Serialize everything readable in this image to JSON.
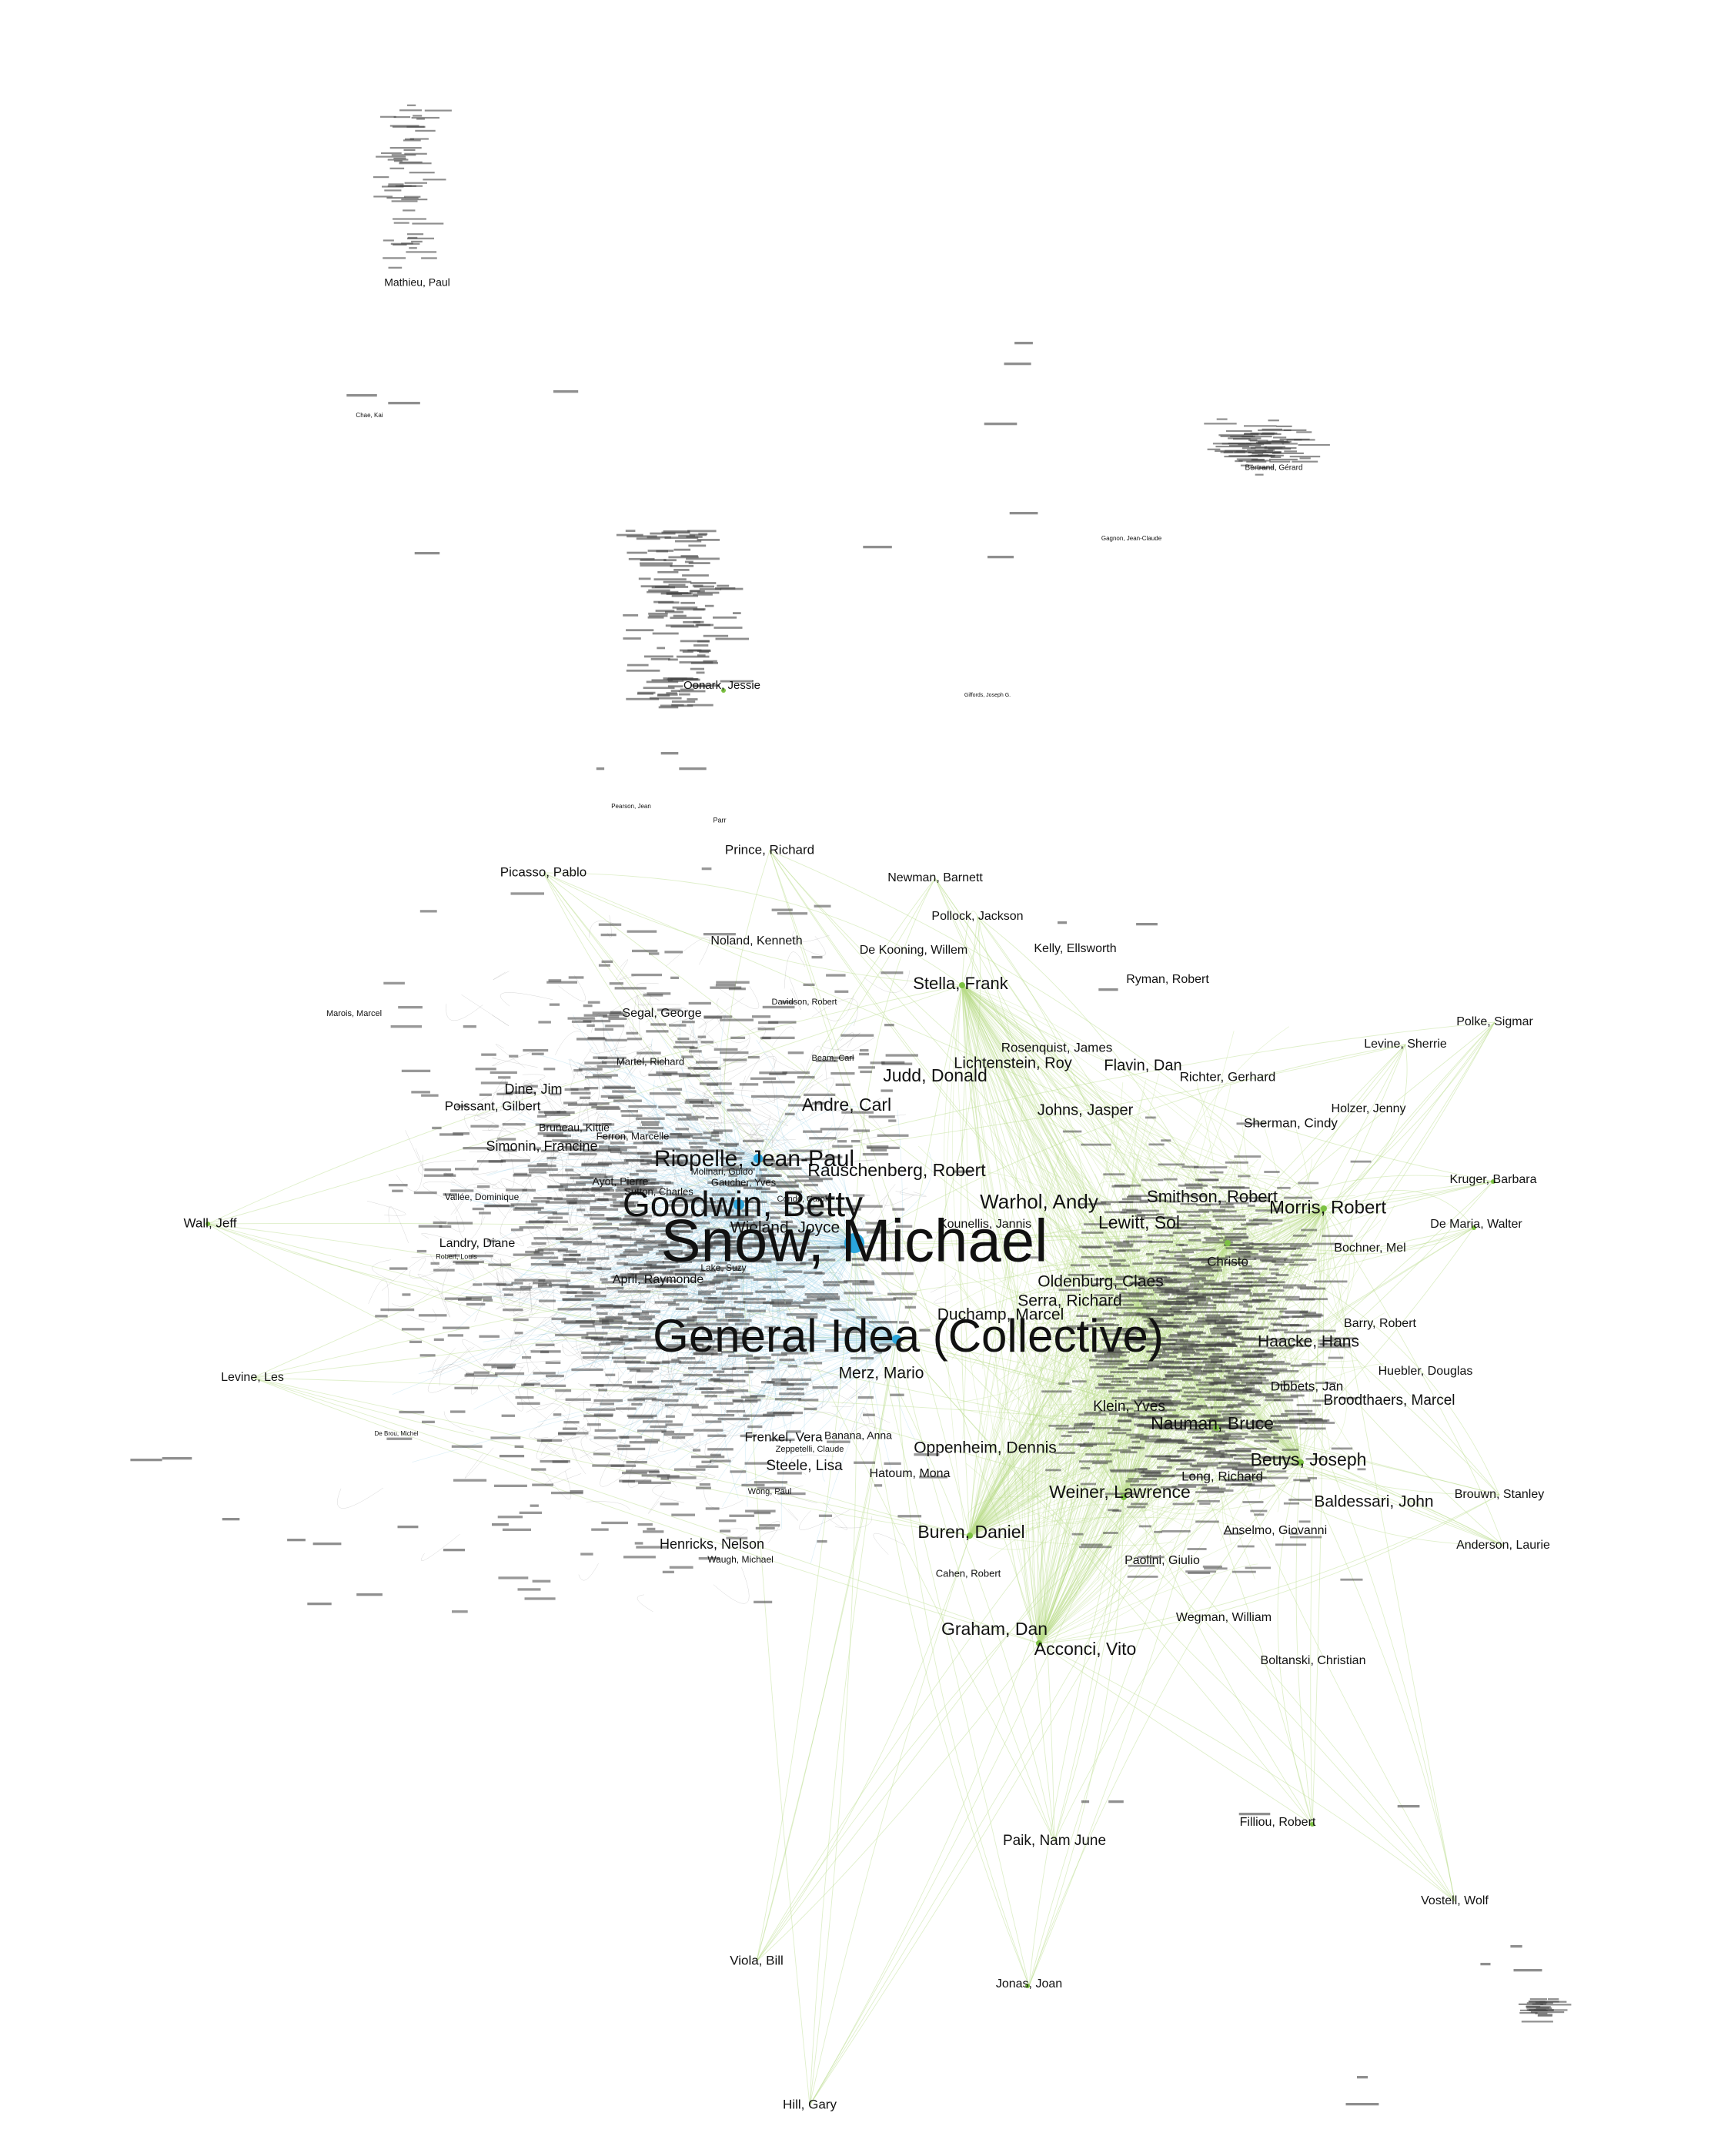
{
  "colors": {
    "background": "#ffffff",
    "canadian_edge": "#9bd1e8",
    "international_edge": "#b9dc8a",
    "canadian_node": "#2aa6dd",
    "international_node": "#7cc142",
    "neutral_node": "#999999"
  },
  "labels": {
    "snow": "Snow, Michael",
    "general_idea": "General Idea (Collective)",
    "goodwin": "Goodwin, Betty",
    "riopelle": "Riopelle, Jean-Paul",
    "rauschenberg": "Rauschenberg, Robert",
    "warhol": "Warhol, Andy",
    "lewitt": "Lewitt, Sol",
    "smithson": "Smithson, Robert",
    "morris": "Morris, Robert",
    "beuys": "Beuys, Joseph",
    "nauman": "Nauman, Bruce",
    "weiner": "Weiner, Lawrence",
    "buren": "Buren, Daniel",
    "graham": "Graham, Dan",
    "acconci": "Acconci, Vito",
    "judd": "Judd, Donald",
    "andre": "Andre, Carl",
    "stella": "Stella, Frank",
    "oldenburg": "Oldenburg, Claes",
    "serra": "Serra, Richard",
    "duchamp": "Duchamp, Marcel",
    "merz": "Merz, Mario",
    "oppenheim": "Oppenheim, Dennis",
    "haacke": "Haacke, Hans",
    "baldessari": "Baldessari, John",
    "dine": "Dine, Jim",
    "wall": "Wall, Jeff",
    "mathieu": "Mathieu, Paul",
    "oonark": "Oonark, Jessie",
    "picasso": "Picasso, Pablo",
    "prince": "Prince, Richard",
    "newman": "Newman, Barnett",
    "pollock": "Pollock, Jackson",
    "dekooning": "De Kooning, Willem",
    "kelly": "Kelly, Ellsworth",
    "ryman": "Ryman, Robert",
    "noland": "Noland, Kenneth",
    "segal": "Segal, George",
    "polke": "Polke, Sigmar",
    "levine_sherrie": "Levine, Sherrie",
    "rosenquist": "Rosenquist, James",
    "lichtenstein": "Lichtenstein, Roy",
    "flavin": "Flavin, Dan",
    "richter": "Richter, Gerhard",
    "holzer": "Holzer, Jenny",
    "johns": "Johns, Jasper",
    "sherman": "Sherman, Cindy",
    "kruger": "Kruger, Barbara",
    "demaria": "De Maria, Walter",
    "bochner": "Bochner, Mel",
    "christo": "Christo",
    "barry": "Barry, Robert",
    "huebler": "Huebler, Douglas",
    "dibbets": "Dibbets, Jan",
    "broodthaers": "Broodthaers, Marcel",
    "klein": "Klein, Yves",
    "long": "Long, Richard",
    "brouwn": "Brouwn, Stanley",
    "anselmo": "Anselmo, Giovanni",
    "anderson": "Anderson, Laurie",
    "paolini": "Paolini, Giulio",
    "wegman": "Wegman, William",
    "boltanski": "Boltanski, Christian",
    "kounellis": "Kounellis, Jannis",
    "wieland": "Wieland, Joyce",
    "levine_les": "Levine, Les",
    "landry": "Landry, Diane",
    "april": "April, Raymonde",
    "simonin": "Simonin, Francine",
    "poissant": "Poissant, Gilbert",
    "martel": "Martel, Richard",
    "bruneau": "Bruneau, Kittie",
    "ferron": "Ferron, Marcelle",
    "ayot": "Ayot, Pierre",
    "gaucher": "Gaucher, Yves",
    "frenkel": "Frenkel, Vera",
    "steele": "Steele, Lisa",
    "banana": "Banana, Anna",
    "hatoum": "Hatoum, Mona",
    "henricks": "Henricks, Nelson",
    "cahen": "Cahen, Robert",
    "paik": "Paik, Nam June",
    "filliou": "Filliou, Robert",
    "vostell": "Vostell, Wolf",
    "viola": "Viola, Bill",
    "jonas": "Jonas, Joan",
    "hill": "Hill, Gary",
    "beam": "Beam, Carl",
    "davidson": "Davidson, Robert",
    "marois": "Marois, Marcel",
    "parr": "Parr",
    "pearson": "Pearson, Jean",
    "chae": "Chae, Kai",
    "gagnon": "Gagnon, Jean-Claude",
    "bertrand": "Bertrand, Gérard",
    "giffords": "Giffords, Joseph G.",
    "molinari": "Molinari, Guido",
    "sutton": "Sutton, Charles",
    "vallee": "Vallée, Dominique",
    "lake": "Lake, Suzy",
    "condé": "Condé, Carole",
    "debrou": "De Brou, Michel",
    "robert_l": "Robert, Louis",
    "wong": "Wong, Paul",
    "waugh": "Waugh, Michael",
    "zeppetelli": "Zeppetelli, Claude"
  }
}
